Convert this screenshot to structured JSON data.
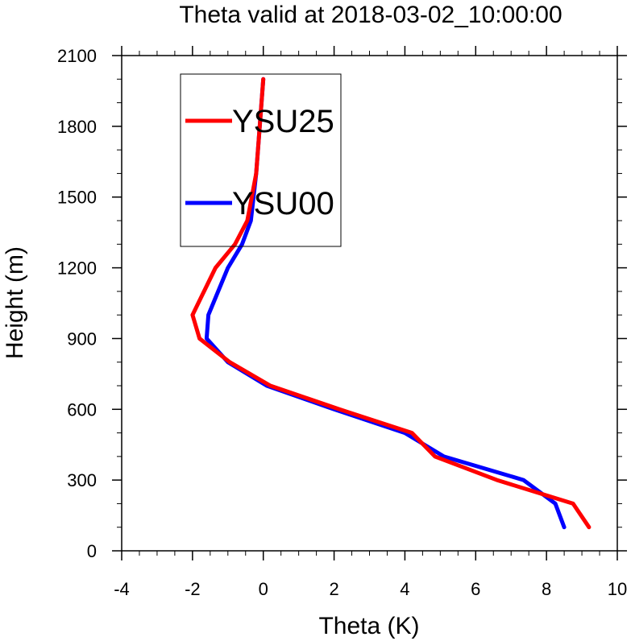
{
  "chart_data": {
    "type": "line",
    "title": "Theta valid at 2018-03-02_10:00:00",
    "xlabel": "Theta (K)",
    "ylabel": "Height (m)",
    "xlim": [
      -4,
      10
    ],
    "ylim": [
      0,
      2100
    ],
    "xticks": [
      -4,
      -2,
      0,
      2,
      4,
      6,
      8,
      10
    ],
    "yticks": [
      0,
      300,
      600,
      900,
      1200,
      1500,
      1800,
      2100
    ],
    "xtick_labels": [
      "-4",
      "-2",
      "0",
      "2",
      "4",
      "6",
      "8",
      "10"
    ],
    "ytick_labels": [
      "0",
      "300",
      "600",
      "900",
      "1200",
      "1500",
      "1800",
      "2100"
    ],
    "grid": false,
    "legend": "top-left",
    "series": [
      {
        "name": "YSU00",
        "color": "#0000ff",
        "x": [
          8.5,
          8.25,
          7.35,
          5.1,
          4.0,
          2.0,
          0.1,
          -1.0,
          -1.6,
          -1.55,
          -1.0,
          -0.6,
          -0.35,
          -0.2,
          -0.1,
          0.0
        ],
        "y": [
          100,
          200,
          300,
          400,
          500,
          600,
          700,
          800,
          900,
          1000,
          1200,
          1300,
          1400,
          1600,
          1800,
          2000
        ]
      },
      {
        "name": "YSU25",
        "color": "#ff0000",
        "x": [
          9.2,
          8.75,
          6.6,
          4.85,
          4.2,
          2.15,
          0.2,
          -0.95,
          -1.8,
          -2.0,
          -1.35,
          -0.8,
          -0.45,
          -0.2,
          -0.1,
          0.0
        ],
        "y": [
          100,
          200,
          300,
          400,
          500,
          600,
          700,
          800,
          900,
          1000,
          1200,
          1300,
          1400,
          1600,
          1800,
          2000
        ]
      }
    ]
  }
}
